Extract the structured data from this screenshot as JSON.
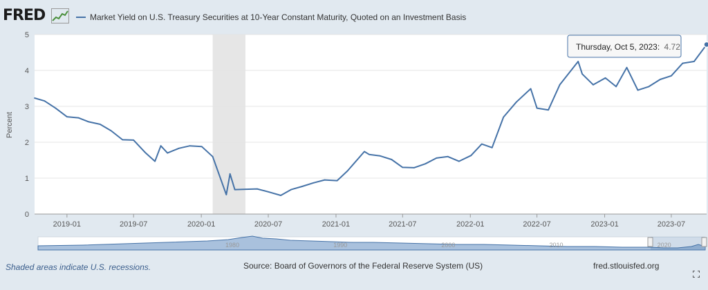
{
  "brand": {
    "logo_text": "FRED"
  },
  "header": {
    "legend_label": "Market Yield on U.S. Treasury Securities at 10-Year Constant Maturity, Quoted on an Investment Basis",
    "legend_color": "#4572a7"
  },
  "tooltip": {
    "date": "Thursday, Oct 5, 2023:",
    "value": "4.72"
  },
  "footer": {
    "recession_note": "Shaded areas indicate U.S. recessions.",
    "source": "Source: Board of Governors of the Federal Reserve System (US)",
    "site": "fred.stlouisfed.org"
  },
  "navigator": {
    "tick_labels": [
      "1980",
      "1990",
      "2000",
      "2010",
      "2020"
    ]
  },
  "chart_data": {
    "type": "line",
    "ylabel": "Percent",
    "ylim": [
      0,
      5
    ],
    "yticks": [
      "0",
      "1",
      "2",
      "3",
      "4",
      "5"
    ],
    "xlim": [
      "2018-10-05",
      "2023-10-05"
    ],
    "xticks": [
      {
        "label": "2019-01",
        "date": "2019-01-01"
      },
      {
        "label": "2019-07",
        "date": "2019-07-01"
      },
      {
        "label": "2020-01",
        "date": "2020-01-01"
      },
      {
        "label": "2020-07",
        "date": "2020-07-01"
      },
      {
        "label": "2021-01",
        "date": "2021-01-01"
      },
      {
        "label": "2021-07",
        "date": "2021-07-01"
      },
      {
        "label": "2022-01",
        "date": "2022-01-01"
      },
      {
        "label": "2022-07",
        "date": "2022-07-01"
      },
      {
        "label": "2023-01",
        "date": "2023-01-01"
      },
      {
        "label": "2023-07",
        "date": "2023-07-01"
      }
    ],
    "recession": {
      "start": "2020-02-01",
      "end": "2020-04-30"
    },
    "grid": true,
    "line_color": "#4572a7",
    "series": [
      {
        "x": [
          "2018-10-05",
          "2018-11-01",
          "2018-12-01",
          "2019-01-01",
          "2019-02-01",
          "2019-03-01",
          "2019-04-01",
          "2019-05-01",
          "2019-06-01",
          "2019-07-01",
          "2019-08-01",
          "2019-08-28",
          "2019-09-13",
          "2019-10-01",
          "2019-11-01",
          "2019-12-01",
          "2020-01-02",
          "2020-02-01",
          "2020-03-09",
          "2020-03-19",
          "2020-04-01",
          "2020-05-01",
          "2020-06-01",
          "2020-07-01",
          "2020-08-04",
          "2020-09-01",
          "2020-10-01",
          "2020-11-01",
          "2020-12-01",
          "2021-01-04",
          "2021-02-01",
          "2021-03-19",
          "2021-04-01",
          "2021-05-01",
          "2021-06-01",
          "2021-07-01",
          "2021-08-01",
          "2021-09-01",
          "2021-10-01",
          "2021-11-01",
          "2021-12-01",
          "2022-01-03",
          "2022-02-01",
          "2022-03-01",
          "2022-04-01",
          "2022-05-06",
          "2022-06-14",
          "2022-07-01",
          "2022-08-01",
          "2022-09-01",
          "2022-10-21",
          "2022-11-01",
          "2022-12-01",
          "2023-01-03",
          "2023-02-01",
          "2023-03-02",
          "2023-04-01",
          "2023-05-01",
          "2023-06-01",
          "2023-07-01",
          "2023-08-01",
          "2023-09-01",
          "2023-10-05"
        ],
        "values": [
          3.23,
          3.15,
          2.95,
          2.71,
          2.68,
          2.57,
          2.5,
          2.32,
          2.07,
          2.06,
          1.72,
          1.47,
          1.9,
          1.7,
          1.83,
          1.9,
          1.88,
          1.6,
          0.54,
          1.12,
          0.68,
          0.69,
          0.7,
          0.62,
          0.52,
          0.68,
          0.77,
          0.87,
          0.95,
          0.93,
          1.2,
          1.74,
          1.66,
          1.62,
          1.52,
          1.3,
          1.29,
          1.4,
          1.56,
          1.6,
          1.47,
          1.63,
          1.95,
          1.85,
          2.7,
          3.12,
          3.49,
          2.95,
          2.9,
          3.6,
          4.25,
          3.9,
          3.6,
          3.79,
          3.55,
          4.08,
          3.45,
          3.55,
          3.75,
          3.85,
          4.2,
          4.25,
          4.72
        ]
      }
    ]
  }
}
